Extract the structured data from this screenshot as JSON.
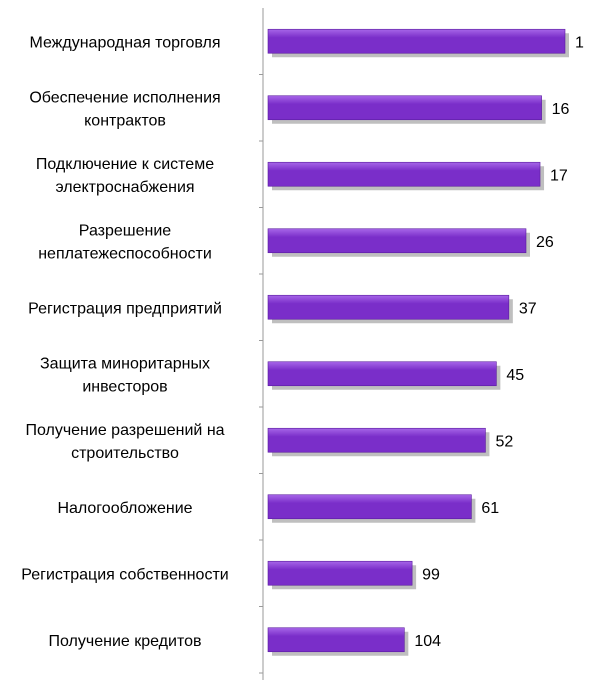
{
  "chart_data": {
    "type": "bar",
    "orientation": "horizontal",
    "categories": [
      [
        "Международная торговля"
      ],
      [
        "Обеспечение исполнения",
        "контрактов"
      ],
      [
        "Подключение к системе",
        "электроснабжения"
      ],
      [
        "Разрешение",
        "неплатежеспособности"
      ],
      [
        "Регистрация предприятий"
      ],
      [
        "Защита миноритарных",
        "инвесторов"
      ],
      [
        "Получение разрешений на",
        "строительство"
      ],
      [
        "Налогообложение"
      ],
      [
        "Регистрация собственности"
      ],
      [
        "Получение кредитов"
      ]
    ],
    "values": [
      1,
      16,
      17,
      26,
      37,
      45,
      52,
      61,
      99,
      104
    ],
    "scale": "reversed",
    "xlim": [
      0,
      190
    ],
    "title": "",
    "xlabel": "",
    "ylabel": "",
    "grid": false,
    "legend": "none",
    "data_labels": true
  },
  "colors": {
    "bar_fill": "#7a2ec9",
    "bar_top": "#a766e8",
    "bar_shadow": "#8a8a8a",
    "axis": "#9a9a9a",
    "text": "#000000"
  }
}
